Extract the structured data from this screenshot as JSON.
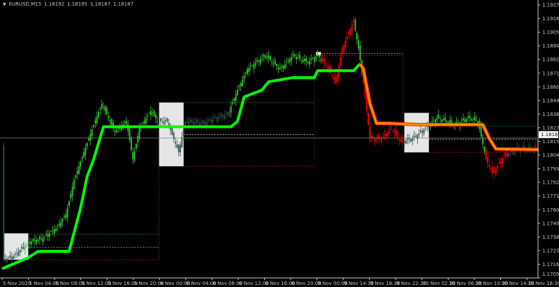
{
  "header": {
    "symbol": "EURUSD,M15",
    "values": [
      "1.18192",
      "1.18195",
      "1.18187",
      "1.18187"
    ],
    "menu_icon": "triangle-down-icon"
  },
  "colors": {
    "background": "#000000",
    "axis": "#c8c8c8",
    "bull": "#33cc33",
    "bear": "#ff0000",
    "neutral": "#2f4f4f",
    "indicator_up": "#00ff00",
    "indicator_down": "#ff8c00",
    "indicator_down_edge": "#ff2a00",
    "box": "#e6e6e6",
    "level_high": "#00a000",
    "level_low": "#c00000",
    "level_mid": "#c0c0c0",
    "current": "#808080"
  },
  "chart_data": {
    "type": "candlestick",
    "symbol": "EURUSD",
    "timeframe": "M15",
    "ylim": [
      1.1705,
      1.1927
    ],
    "y_ticks": [
      "1.19270",
      "1.19160",
      "1.19050",
      "1.18940",
      "1.18825",
      "1.18715",
      "1.18605",
      "1.18490",
      "1.18380",
      "1.18270",
      "1.18155",
      "1.18045",
      "1.17935",
      "1.17825",
      "1.17710",
      "1.17600",
      "1.17490",
      "1.17380",
      "1.17270",
      "1.17160",
      "1.17050"
    ],
    "x_ticks": [
      "5 Nov 2020",
      "5 Nov 04:00",
      "5 Nov 08:00",
      "5 Nov 12:00",
      "5 Nov 16:00",
      "5 Nov 20:00",
      "6 Nov 00:00",
      "6 Nov 04:00",
      "6 Nov 08:00",
      "6 Nov 12:00",
      "6 Nov 16:00",
      "6 Nov 20:00",
      "9 Nov 00:00",
      "9 Nov 14:30",
      "9 Nov 18:30",
      "9 Nov 22:30",
      "10 Nov 02:30",
      "10 Nov 06:30",
      "10 Nov 10:30",
      "10 Nov 14:30",
      "10 Nov 18:30"
    ],
    "current_price": "1.18187",
    "price_path": [
      [
        1,
        1.17198
      ],
      [
        7,
        1.17226
      ],
      [
        16,
        1.17339
      ],
      [
        24,
        1.17367
      ],
      [
        33,
        1.17452
      ],
      [
        39,
        1.17564
      ],
      [
        44,
        1.17846
      ],
      [
        50,
        1.18071
      ],
      [
        56,
        1.18296
      ],
      [
        61,
        1.18465
      ],
      [
        65,
        1.18352
      ],
      [
        69,
        1.1824
      ],
      [
        76,
        1.18324
      ],
      [
        80,
        1.18015
      ],
      [
        84,
        1.18268
      ],
      [
        91,
        1.18409
      ],
      [
        95,
        1.18324
      ],
      [
        101,
        1.18324
      ],
      [
        108,
        1.18071
      ],
      [
        112,
        1.18324
      ],
      [
        123,
        1.18307
      ],
      [
        131,
        1.18352
      ],
      [
        138,
        1.1838
      ],
      [
        144,
        1.18578
      ],
      [
        150,
        1.18746
      ],
      [
        161,
        1.18859
      ],
      [
        170,
        1.18746
      ],
      [
        178,
        1.18859
      ],
      [
        187,
        1.18803
      ],
      [
        193,
        1.18859
      ],
      [
        200,
        1.18746
      ],
      [
        204,
        1.18634
      ],
      [
        208,
        1.18915
      ],
      [
        215,
        1.19141
      ],
      [
        218,
        1.18915
      ],
      [
        221,
        1.18634
      ],
      [
        225,
        1.18183
      ],
      [
        232,
        1.18183
      ],
      [
        238,
        1.18268
      ],
      [
        244,
        1.18155
      ],
      [
        251,
        1.18183
      ],
      [
        259,
        1.18268
      ],
      [
        266,
        1.18352
      ],
      [
        277,
        1.18296
      ],
      [
        285,
        1.18352
      ],
      [
        291,
        1.18324
      ],
      [
        296,
        1.18015
      ],
      [
        300,
        1.17902
      ],
      [
        307,
        1.18043
      ],
      [
        315,
        1.18099
      ],
      [
        328,
        1.18099
      ]
    ],
    "candle_colors": [
      {
        "from": 0,
        "to": 14,
        "color": "neutral"
      },
      {
        "from": 14,
        "to": 96,
        "color": "bull"
      },
      {
        "from": 96,
        "to": 111,
        "color": "neutral"
      },
      {
        "from": 111,
        "to": 140,
        "color": "neutral"
      },
      {
        "from": 140,
        "to": 196,
        "color": "bull"
      },
      {
        "from": 196,
        "to": 216,
        "color": "bear"
      },
      {
        "from": 216,
        "to": 221,
        "color": "bull"
      },
      {
        "from": 221,
        "to": 246,
        "color": "bear"
      },
      {
        "from": 246,
        "to": 262,
        "color": "neutral"
      },
      {
        "from": 262,
        "to": 296,
        "color": "bull"
      },
      {
        "from": 296,
        "to": 310,
        "color": "bear"
      },
      {
        "from": 310,
        "to": 329,
        "color": "neutral"
      }
    ],
    "indicator_line": [
      [
        0,
        1.17125
      ],
      [
        16,
        1.17215
      ],
      [
        22,
        1.17266
      ],
      [
        41,
        1.17266
      ],
      [
        48,
        1.1762
      ],
      [
        52,
        1.17874
      ],
      [
        56,
        1.18015
      ],
      [
        62,
        1.18279
      ],
      [
        140,
        1.18279
      ],
      [
        144,
        1.18324
      ],
      [
        148,
        1.18521
      ],
      [
        159,
        1.18578
      ],
      [
        163,
        1.18645
      ],
      [
        178,
        1.18679
      ],
      [
        191,
        1.18679
      ],
      [
        193,
        1.18735
      ],
      [
        215,
        1.18735
      ],
      [
        219,
        1.18791
      ],
      [
        221,
        1.18746
      ],
      [
        225,
        1.18465
      ],
      [
        229,
        1.18307
      ],
      [
        236,
        1.18307
      ],
      [
        255,
        1.18296
      ],
      [
        294,
        1.18296
      ],
      [
        298,
        1.18183
      ],
      [
        302,
        1.18099
      ],
      [
        328,
        1.18093
      ]
    ],
    "indicator_switch_bar": 219,
    "boxes": [
      [
        1,
        16,
        1.17412,
        1.17198
      ],
      [
        96,
        111,
        1.18476,
        1.17958
      ],
      [
        192,
        195,
        1.18887,
        1.18859
      ],
      [
        246,
        261,
        1.18392,
        1.18071
      ]
    ],
    "levels": [
      {
        "from": 16,
        "to": 96,
        "price": 1.17406,
        "kind": "level_high"
      },
      {
        "from": 16,
        "to": 96,
        "price": 1.17299,
        "kind": "level_mid"
      },
      {
        "from": 16,
        "to": 96,
        "price": 1.17198,
        "kind": "level_low"
      },
      {
        "from": 111,
        "to": 191,
        "price": 1.18476,
        "kind": "level_high"
      },
      {
        "from": 111,
        "to": 191,
        "price": 1.18217,
        "kind": "level_mid"
      },
      {
        "from": 111,
        "to": 191,
        "price": 1.17958,
        "kind": "level_low"
      },
      {
        "from": 195,
        "to": 245,
        "price": 1.18876,
        "kind": "level_mid"
      },
      {
        "from": 195,
        "to": 245,
        "price": 1.18859,
        "kind": "level_low"
      },
      {
        "from": 261,
        "to": 328,
        "price": 1.18285,
        "kind": "level_high"
      },
      {
        "from": 261,
        "to": 328,
        "price": 1.18178,
        "kind": "level_mid"
      },
      {
        "from": 261,
        "to": 328,
        "price": 1.18071,
        "kind": "level_low"
      }
    ],
    "verticals": [
      [
        96,
        1.18476,
        1.17198
      ],
      [
        191,
        1.18887,
        1.17958
      ],
      [
        245,
        1.18876,
        1.18099
      ]
    ]
  }
}
